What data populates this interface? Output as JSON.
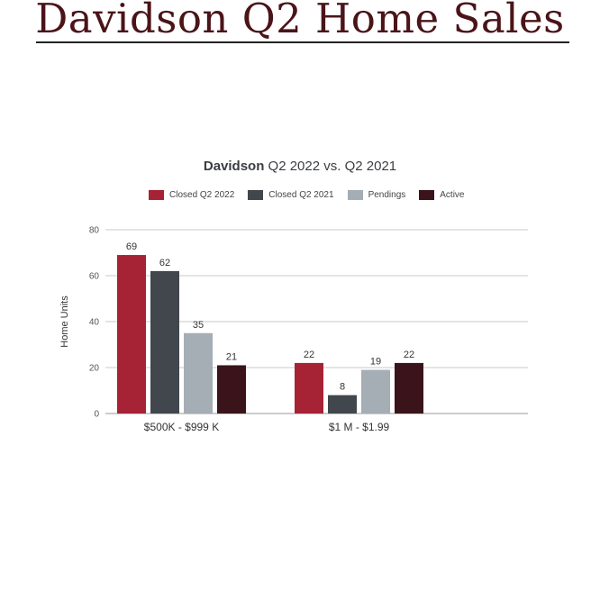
{
  "page": {
    "title": "Davidson Q2 Home Sales"
  },
  "chart_data": {
    "type": "bar",
    "title_bold": "Davidson",
    "title_rest": " Q2 2022 vs. Q2 2021",
    "ylabel": "Home Units",
    "xlabel": "",
    "ylim": [
      0,
      80
    ],
    "yticks": [
      0,
      20,
      40,
      60,
      80
    ],
    "grid": true,
    "legend_position": "top",
    "categories": [
      "$500K - $999 K",
      "$1 M - $1.99"
    ],
    "series": [
      {
        "name": "Closed Q2 2022",
        "color": "#a52334",
        "values": [
          69,
          22
        ]
      },
      {
        "name": "Closed Q2 2021",
        "color": "#41474d",
        "values": [
          62,
          8
        ]
      },
      {
        "name": "Pendings",
        "color": "#a5adb5",
        "values": [
          35,
          19
        ]
      },
      {
        "name": "Active",
        "color": "#3a141a",
        "values": [
          21,
          22
        ]
      }
    ]
  }
}
